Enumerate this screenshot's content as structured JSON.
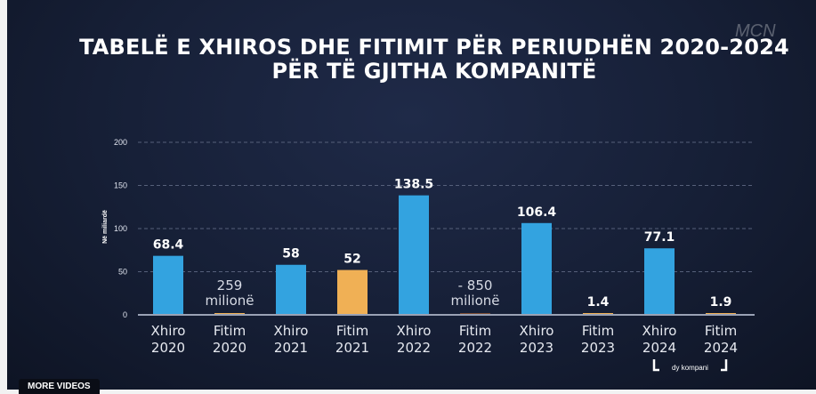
{
  "title_line1": "TABELË E XHIROS DHE FITIMIT PËR PERIUDHËN 2020-2024",
  "title_line2": "PËR TË GJITHA KOMPANITË",
  "logo": "MCN",
  "more_videos": "MORE VIDEOS",
  "chart_data": {
    "type": "bar",
    "title": "TABELË E XHIROS DHE FITIMIT PËR PERIUDHËN 2020-2024 PËR TË GJITHA KOMPANITË",
    "ylabel": "Në miliardë",
    "ylim": [
      0,
      200
    ],
    "yticks": [
      "0",
      "50",
      "100",
      "150",
      "200"
    ],
    "grid": true,
    "categories": [
      [
        "Xhiro",
        "2020"
      ],
      [
        "Fitim",
        "2020"
      ],
      [
        "Xhiro",
        "2021"
      ],
      [
        "Fitim",
        "2021"
      ],
      [
        "Xhiro",
        "2022"
      ],
      [
        "Fitim",
        "2022"
      ],
      [
        "Xhiro",
        "2023"
      ],
      [
        "Fitim",
        "2023"
      ],
      [
        "Xhiro",
        "2024"
      ],
      [
        "Fitim",
        "2024"
      ]
    ],
    "values": [
      68.4,
      0.259,
      58,
      52,
      138.5,
      -0.85,
      106.4,
      1.4,
      77.1,
      1.9
    ],
    "labels": [
      [
        "68.4"
      ],
      [
        "259",
        "milionë"
      ],
      [
        "58"
      ],
      [
        "52"
      ],
      [
        "138.5"
      ],
      [
        "- 850",
        "milionë"
      ],
      [
        "106.4"
      ],
      [
        "1.4"
      ],
      [
        "77.1"
      ],
      [
        "1.9"
      ]
    ],
    "series_type": [
      "xhiro",
      "fitim",
      "xhiro",
      "fitim",
      "xhiro",
      "fitim",
      "xhiro",
      "fitim",
      "xhiro",
      "fitim"
    ],
    "colors": {
      "xhiro": "#33a3e0",
      "fitim": "#f0b055",
      "fitim_negative": "#7a4a30"
    },
    "annotation": "dy kompani"
  }
}
